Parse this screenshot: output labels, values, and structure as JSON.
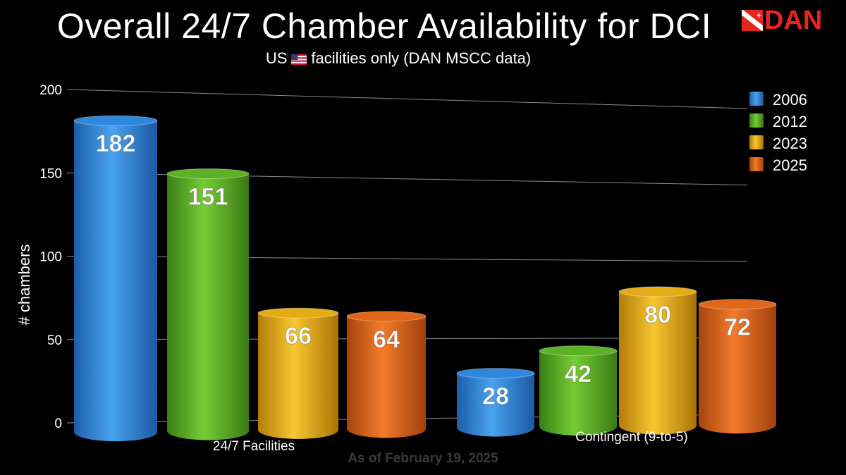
{
  "header": {
    "title": "Overall 24/7 Chamber Availability for DCI",
    "subtitle_pre": "US",
    "subtitle_post": "facilities only (DAN MSCC data)",
    "logo_text": "DAN"
  },
  "footer": {
    "note": "As of February 19, 2025"
  },
  "colors": {
    "2006": "#2f86dd",
    "2012": "#5cb227",
    "2023": "#e5ab14",
    "2025": "#e0661a"
  },
  "chart_data": {
    "type": "bar",
    "title": "Overall 24/7 Chamber Availability for DCI",
    "subtitle": "US facilities only (DAN MSCC data)",
    "xlabel": "",
    "ylabel": "# chambers",
    "ylim": [
      0,
      200
    ],
    "yticks": [
      0,
      50,
      100,
      150,
      200
    ],
    "grid": true,
    "legend_position": "top-right",
    "categories": [
      "24/7 Facilities",
      "Contingent (9-to-5)"
    ],
    "series": [
      {
        "name": "2006",
        "values": [
          182,
          28
        ]
      },
      {
        "name": "2012",
        "values": [
          151,
          42
        ]
      },
      {
        "name": "2023",
        "values": [
          66,
          80
        ]
      },
      {
        "name": "2025",
        "values": [
          64,
          72
        ]
      }
    ]
  }
}
